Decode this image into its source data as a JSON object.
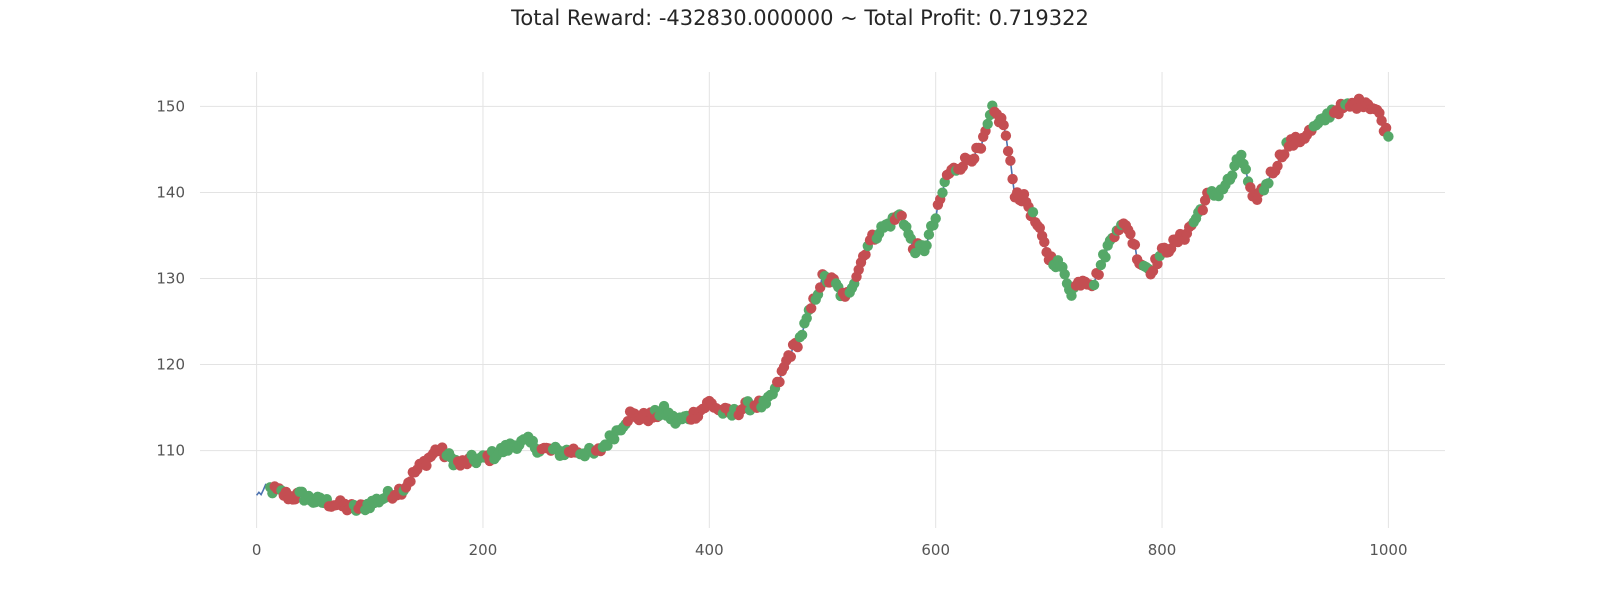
{
  "chart_data": {
    "type": "line",
    "title": "Total Reward: -432830.000000 ~ Total Profit: 0.719322",
    "xlabel": "",
    "ylabel": "",
    "xlim": [
      -50,
      1050
    ],
    "ylim": [
      101,
      154
    ],
    "x_ticks": [
      0,
      200,
      400,
      600,
      800,
      1000
    ],
    "y_ticks": [
      110,
      120,
      130,
      140,
      150
    ],
    "grid": true,
    "legend": "none",
    "colors": {
      "price_line": "#4c72b0",
      "short_marker": "#c44e52",
      "long_marker": "#55a868",
      "grid": "#e3e3e3",
      "tick_text": "#555555"
    },
    "series": [
      {
        "x": [
          0,
          10,
          20,
          30,
          40,
          50,
          60,
          70,
          80,
          90,
          100,
          110,
          120,
          130,
          140,
          150,
          160,
          170,
          180,
          190,
          200,
          210,
          220,
          230,
          240,
          250,
          260,
          270,
          280,
          290,
          300,
          310,
          320,
          330,
          340,
          350,
          360,
          370,
          380,
          390,
          400,
          410,
          420,
          430,
          440,
          450,
          460,
          470,
          480,
          490,
          500,
          510,
          520,
          530,
          540,
          550,
          560,
          570,
          580,
          590,
          600,
          610,
          620,
          630,
          640,
          650,
          660,
          670,
          680,
          690,
          700,
          710,
          720,
          730,
          740,
          750,
          760,
          770,
          780,
          790,
          800,
          810,
          820,
          830,
          840,
          850,
          860,
          870,
          880,
          890,
          900,
          910,
          920,
          930,
          940,
          950,
          960,
          970,
          980,
          990,
          1000
        ],
        "values": [
          104.8,
          105.6,
          105.2,
          104.6,
          104.8,
          104.2,
          104.0,
          103.8,
          103.4,
          103.2,
          103.8,
          104.4,
          105.0,
          105.6,
          107.5,
          108.8,
          110.2,
          109.2,
          108.4,
          108.9,
          109.0,
          109.5,
          110.2,
          110.8,
          111.0,
          110.2,
          110.0,
          109.8,
          110.0,
          109.8,
          109.6,
          111.0,
          112.5,
          114.2,
          113.8,
          114.0,
          114.6,
          113.4,
          113.8,
          114.4,
          115.6,
          114.6,
          114.2,
          115.0,
          115.4,
          115.2,
          117.5,
          121.0,
          123.0,
          126.5,
          130.0,
          129.6,
          127.5,
          130.5,
          134.0,
          135.5,
          136.5,
          137.5,
          133.5,
          133.5,
          137.0,
          142.0,
          143.0,
          144.0,
          145.0,
          149.5,
          148.0,
          140.0,
          139.0,
          136.0,
          132.5,
          131.5,
          128.5,
          130.0,
          129.5,
          133.0,
          136.0,
          136.0,
          132.0,
          131.0,
          133.0,
          134.0,
          135.0,
          137.0,
          139.5,
          140.0,
          141.5,
          144.5,
          139.0,
          140.5,
          143.0,
          145.5,
          146.0,
          147.0,
          148.0,
          149.5,
          149.8,
          150.2,
          150.6,
          149.5,
          146.5
        ]
      }
    ]
  }
}
